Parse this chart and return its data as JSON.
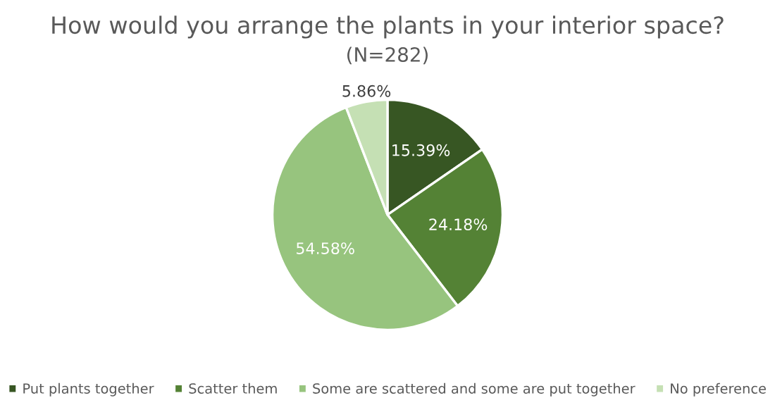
{
  "chart_data": {
    "type": "pie",
    "title": "How would you arrange the plants in your interior space?",
    "subtitle": "(N=282)",
    "categories": [
      "Put plants together",
      "Scatter them",
      "Some are scattered and some are put together",
      "No preference"
    ],
    "values": [
      15.39,
      24.18,
      54.58,
      5.86
    ],
    "value_labels": [
      "15.39%",
      "24.18%",
      "54.58%",
      "5.86%"
    ],
    "colors": [
      "#375623",
      "#548235",
      "#97c47e",
      "#c5e0b4"
    ],
    "legend": "bottom"
  }
}
